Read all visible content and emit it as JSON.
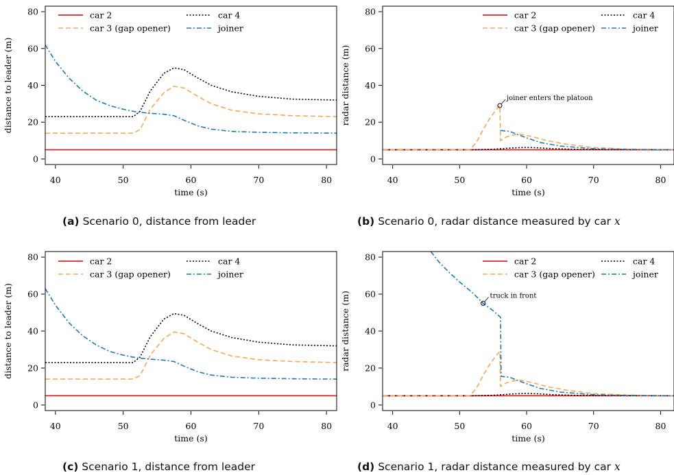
{
  "colors": {
    "car 2": "#d62728",
    "car 3 (gap opener)": "#f5a85a",
    "car 4": "#000000",
    "joiner": "#1f77b4"
  },
  "dash": {
    "car 2": "",
    "car 3 (gap opener)": "7,4",
    "car 4": "2,2.5",
    "joiner": "7,3,2,3"
  },
  "captions": [
    {
      "tag": "(a)",
      "text": "Scenario 0, distance from leader",
      "var": ""
    },
    {
      "tag": "(b)",
      "text": "Scenario 0, radar distance measured by car ",
      "var": "x"
    },
    {
      "tag": "(c)",
      "text": "Scenario 1, distance from leader",
      "var": ""
    },
    {
      "tag": "(d)",
      "text": "Scenario 1, radar distance measured by car ",
      "var": "x"
    }
  ],
  "chart_data": [
    {
      "id": "a",
      "type": "line",
      "xlabel": "time (s)",
      "ylabel": "distance to leader (m)",
      "xlim": [
        38.5,
        81.5
      ],
      "ylim": [
        -3,
        83
      ],
      "xticks": [
        40,
        50,
        60,
        70,
        80
      ],
      "yticks": [
        0,
        20,
        40,
        60,
        80
      ],
      "legend": {
        "position": "top",
        "items": [
          "car 2",
          "car 3 (gap opener)",
          "car 4",
          "joiner"
        ]
      },
      "annotation": null,
      "series": [
        {
          "name": "car 2",
          "points": [
            [
              38.5,
              5
            ],
            [
              81.5,
              5
            ]
          ]
        },
        {
          "name": "car 3 (gap opener)",
          "points": [
            [
              38.5,
              14
            ],
            [
              51.5,
              14
            ],
            [
              52.5,
              16
            ],
            [
              54,
              27
            ],
            [
              56,
              36
            ],
            [
              57.5,
              39.5
            ],
            [
              59,
              38.5
            ],
            [
              61,
              34
            ],
            [
              63,
              30
            ],
            [
              66,
              26.5
            ],
            [
              70,
              24.5
            ],
            [
              75,
              23.5
            ],
            [
              81.5,
              23
            ]
          ]
        },
        {
          "name": "car 4",
          "points": [
            [
              38.5,
              23
            ],
            [
              51.5,
              23
            ],
            [
              52.5,
              26
            ],
            [
              54,
              37
            ],
            [
              56,
              46.5
            ],
            [
              57.5,
              49.5
            ],
            [
              59,
              48.5
            ],
            [
              61,
              44
            ],
            [
              63,
              40
            ],
            [
              66,
              36.5
            ],
            [
              70,
              34
            ],
            [
              75,
              32.5
            ],
            [
              81.5,
              32
            ]
          ]
        },
        {
          "name": "joiner",
          "points": [
            [
              38.5,
              62
            ],
            [
              40,
              53
            ],
            [
              42,
              44
            ],
            [
              44,
              37
            ],
            [
              46,
              32
            ],
            [
              48,
              29
            ],
            [
              50,
              27
            ],
            [
              52,
              25.5
            ],
            [
              54,
              24.8
            ],
            [
              56,
              24.3
            ],
            [
              57.5,
              23.5
            ],
            [
              59,
              21
            ],
            [
              61,
              18
            ],
            [
              63,
              16.2
            ],
            [
              66,
              15
            ],
            [
              70,
              14.5
            ],
            [
              75,
              14.2
            ],
            [
              81.5,
              14
            ]
          ]
        }
      ]
    },
    {
      "id": "b",
      "type": "line",
      "xlabel": "time (s)",
      "ylabel": "radar distance (m)",
      "xlim": [
        38.5,
        82
      ],
      "ylim": [
        -3,
        83
      ],
      "xticks": [
        40,
        50,
        60,
        70,
        80
      ],
      "yticks": [
        0,
        20,
        40,
        60,
        80
      ],
      "legend": {
        "position": "top-right",
        "items": [
          "car 2",
          "car 3 (gap opener)",
          "car 4",
          "joiner"
        ]
      },
      "annotation": {
        "text": "joiner enters the platoon",
        "x": 56,
        "y": 29
      },
      "series": [
        {
          "name": "car 2",
          "points": [
            [
              38.5,
              5
            ],
            [
              82,
              5
            ]
          ]
        },
        {
          "name": "car 4",
          "points": [
            [
              38.5,
              5
            ],
            [
              52,
              5
            ],
            [
              55,
              5.3
            ],
            [
              58,
              6
            ],
            [
              60,
              6.3
            ],
            [
              62,
              6
            ],
            [
              64,
              5.6
            ],
            [
              68,
              5.2
            ],
            [
              82,
              5
            ]
          ]
        },
        {
          "name": "car 3 (gap opener)",
          "points": [
            [
              38.5,
              5
            ],
            [
              51.5,
              5
            ],
            [
              52.5,
              9
            ],
            [
              53.5,
              16
            ],
            [
              54.5,
              22
            ],
            [
              55.5,
              27
            ],
            [
              56,
              29
            ],
            [
              56.1,
              10
            ],
            [
              57,
              12
            ],
            [
              58,
              13
            ],
            [
              59,
              13.5
            ],
            [
              61,
              12
            ],
            [
              63,
              10
            ],
            [
              66,
              8
            ],
            [
              70,
              6.2
            ],
            [
              75,
              5.4
            ],
            [
              82,
              5
            ]
          ]
        },
        {
          "name": "joiner",
          "points": [
            [
              56.1,
              15.5
            ],
            [
              57.5,
              15
            ],
            [
              58.5,
              13.5
            ],
            [
              60,
              11.5
            ],
            [
              62,
              9
            ],
            [
              65,
              7
            ],
            [
              70,
              5.6
            ],
            [
              75,
              5.2
            ],
            [
              82,
              5
            ]
          ]
        }
      ]
    },
    {
      "id": "c",
      "type": "line",
      "xlabel": "time (s)",
      "ylabel": "distance to leader (m)",
      "xlim": [
        38.5,
        81.5
      ],
      "ylim": [
        -3,
        83
      ],
      "xticks": [
        40,
        50,
        60,
        70,
        80
      ],
      "yticks": [
        0,
        20,
        40,
        60,
        80
      ],
      "legend": {
        "position": "top",
        "items": [
          "car 2",
          "car 3 (gap opener)",
          "car 4",
          "joiner"
        ]
      },
      "annotation": null,
      "series": [
        {
          "name": "car 2",
          "points": [
            [
              38.5,
              5
            ],
            [
              81.5,
              5
            ]
          ]
        },
        {
          "name": "car 3 (gap opener)",
          "points": [
            [
              38.5,
              14
            ],
            [
              51.5,
              14
            ],
            [
              52.5,
              16
            ],
            [
              54,
              27
            ],
            [
              56,
              36
            ],
            [
              57.5,
              39.5
            ],
            [
              59,
              38.5
            ],
            [
              61,
              34
            ],
            [
              63,
              30
            ],
            [
              66,
              26.5
            ],
            [
              70,
              24.5
            ],
            [
              75,
              23.5
            ],
            [
              81.5,
              23
            ]
          ]
        },
        {
          "name": "car 4",
          "points": [
            [
              38.5,
              23
            ],
            [
              51.5,
              23
            ],
            [
              52.5,
              26
            ],
            [
              54,
              37
            ],
            [
              56,
              46.5
            ],
            [
              57.5,
              49.5
            ],
            [
              59,
              48.5
            ],
            [
              61,
              44
            ],
            [
              63,
              40
            ],
            [
              66,
              36.5
            ],
            [
              70,
              34
            ],
            [
              75,
              32.5
            ],
            [
              81.5,
              32
            ]
          ]
        },
        {
          "name": "joiner",
          "points": [
            [
              38.5,
              63
            ],
            [
              40,
              54
            ],
            [
              42,
              44.5
            ],
            [
              44,
              37.5
            ],
            [
              46,
              32.5
            ],
            [
              48,
              29
            ],
            [
              50,
              27
            ],
            [
              52,
              25.5
            ],
            [
              54,
              24.8
            ],
            [
              56,
              24.3
            ],
            [
              57.5,
              23.5
            ],
            [
              59,
              21
            ],
            [
              61,
              18
            ],
            [
              63,
              16.2
            ],
            [
              66,
              15
            ],
            [
              70,
              14.5
            ],
            [
              75,
              14.2
            ],
            [
              81.5,
              14
            ]
          ]
        }
      ]
    },
    {
      "id": "d",
      "type": "line",
      "xlabel": "time (s)",
      "ylabel": "radar distance (m)",
      "xlim": [
        38.5,
        82
      ],
      "ylim": [
        -3,
        83
      ],
      "xticks": [
        40,
        50,
        60,
        70,
        80
      ],
      "yticks": [
        0,
        20,
        40,
        60,
        80
      ],
      "legend": {
        "position": "top-right",
        "items": [
          "car 2",
          "car 3 (gap opener)",
          "car 4",
          "joiner"
        ]
      },
      "annotation": {
        "text": "truck in front",
        "x": 53.5,
        "y": 55
      },
      "series": [
        {
          "name": "car 2",
          "points": [
            [
              38.5,
              5
            ],
            [
              82,
              5
            ]
          ]
        },
        {
          "name": "car 4",
          "points": [
            [
              38.5,
              5
            ],
            [
              52,
              5
            ],
            [
              55,
              5.3
            ],
            [
              58,
              6
            ],
            [
              60,
              6.3
            ],
            [
              62,
              6
            ],
            [
              64,
              5.6
            ],
            [
              68,
              5.2
            ],
            [
              82,
              5
            ]
          ]
        },
        {
          "name": "car 3 (gap opener)",
          "points": [
            [
              38.5,
              5
            ],
            [
              51.5,
              5
            ],
            [
              52.5,
              9
            ],
            [
              53.5,
              16
            ],
            [
              54.5,
              22
            ],
            [
              55.5,
              27
            ],
            [
              56,
              29
            ],
            [
              56.1,
              10
            ],
            [
              57,
              12
            ],
            [
              58,
              13
            ],
            [
              59,
              13.5
            ],
            [
              61,
              12
            ],
            [
              63,
              10
            ],
            [
              66,
              8
            ],
            [
              70,
              6.2
            ],
            [
              75,
              5.4
            ],
            [
              82,
              5
            ]
          ]
        },
        {
          "name": "joiner",
          "points": [
            [
              45.7,
              83
            ],
            [
              47,
              77
            ],
            [
              48.5,
              71.5
            ],
            [
              50,
              66.5
            ],
            [
              52,
              60.5
            ],
            [
              53.5,
              55
            ],
            [
              55,
              51
            ],
            [
              56.1,
              47.5
            ],
            [
              56.2,
              15.5
            ],
            [
              57.5,
              15
            ],
            [
              58.5,
              13.5
            ],
            [
              60,
              11.5
            ],
            [
              62,
              9
            ],
            [
              65,
              7
            ],
            [
              70,
              5.6
            ],
            [
              75,
              5.2
            ],
            [
              82,
              5
            ]
          ]
        }
      ]
    }
  ]
}
